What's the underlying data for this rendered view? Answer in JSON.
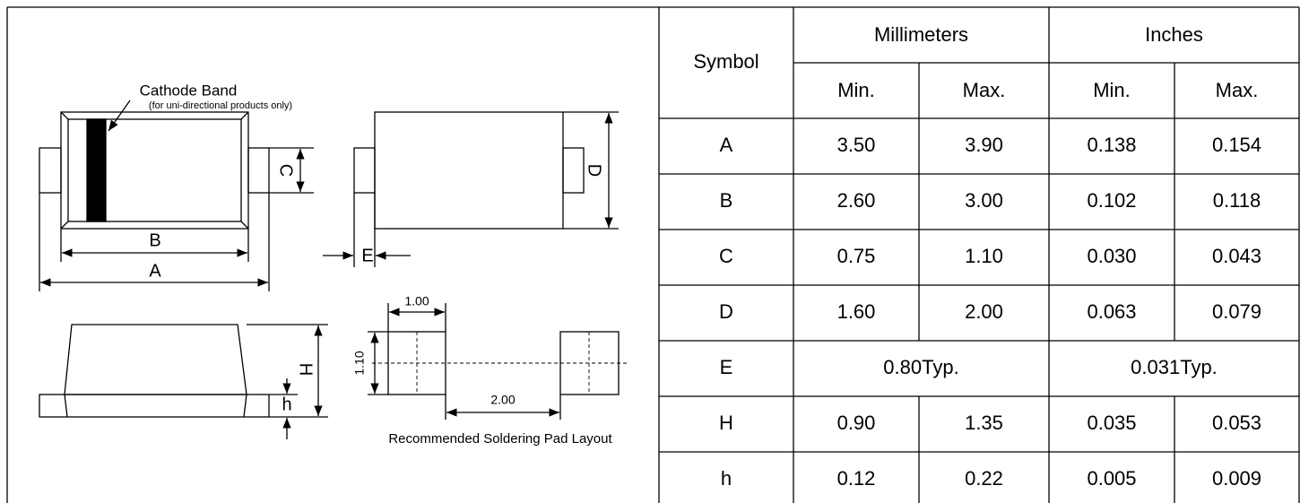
{
  "drawing": {
    "cathode_band": "Cathode Band",
    "cathode_note": "(for uni-directional products only)",
    "labels": {
      "A": "A",
      "B": "B",
      "C": "C",
      "D": "D",
      "E": "E",
      "H": "H",
      "h": "h"
    },
    "pad_layout": {
      "width": "1.00",
      "height": "1.10",
      "pitch": "2.00",
      "caption": "Recommended Soldering Pad Layout"
    }
  },
  "table": {
    "headers": {
      "symbol": "Symbol",
      "mm": "Millimeters",
      "in": "Inches",
      "sub": [
        "Min.",
        "Max.",
        "Min.",
        "Max."
      ]
    },
    "rows": [
      [
        "A",
        "3.50",
        "3.90",
        "0.138",
        "0.154"
      ],
      [
        "B",
        "2.60",
        "3.00",
        "0.102",
        "0.118"
      ],
      [
        "C",
        "0.75",
        "1.10",
        "0.030",
        "0.043"
      ],
      [
        "D",
        "1.60",
        "2.00",
        "0.063",
        "0.079"
      ],
      [
        "E",
        "0.80Typ.",
        "0.031Typ."
      ],
      [
        "H",
        "0.90",
        "1.35",
        "0.035",
        "0.053"
      ],
      [
        "h",
        "0.12",
        "0.22",
        "0.005",
        "0.009"
      ]
    ]
  }
}
